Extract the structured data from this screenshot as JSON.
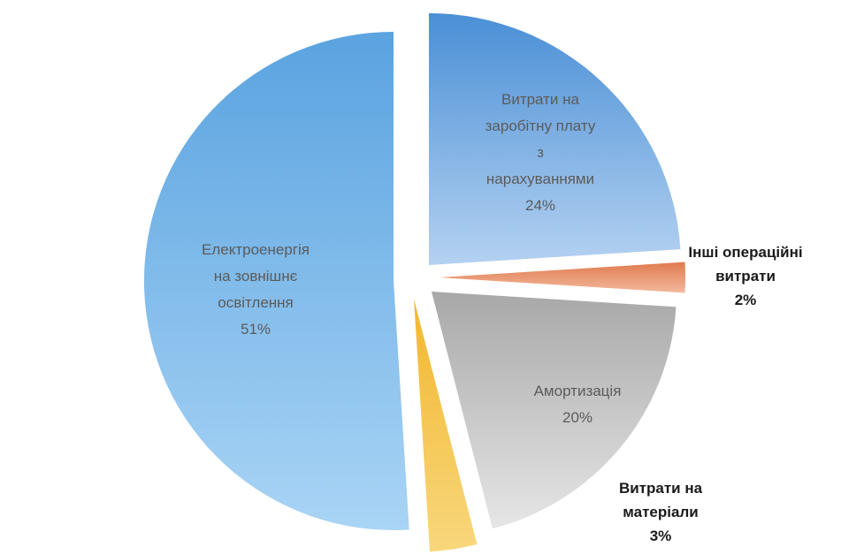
{
  "chart_data": {
    "type": "pie",
    "exploded": true,
    "slices": [
      {
        "label_lines": [
          "Витрати на",
          "заробітну плату",
          "з",
          "нарахуваннями"
        ],
        "value": 24,
        "value_text": "24%",
        "color": "#4a8fd6",
        "color_light": "#b4d1f1",
        "label_position": "inside"
      },
      {
        "label_lines": [
          "Інші операційні",
          "витрати"
        ],
        "value": 2,
        "value_text": "2%",
        "color": "#e07a4e",
        "color_light": "#f2b99d",
        "label_position": "outside"
      },
      {
        "label_lines": [
          "Амортизація"
        ],
        "value": 20,
        "value_text": "20%",
        "color": "#a8a8a8",
        "color_light": "#e6e6e6",
        "label_position": "inside"
      },
      {
        "label_lines": [
          "Витрати на",
          "матеріали"
        ],
        "value": 3,
        "value_text": "3%",
        "color": "#f2b72e",
        "color_light": "#f8d77c",
        "label_position": "outside"
      },
      {
        "label_lines": [
          "Електроенергія",
          "на зовнішнє",
          "освітлення"
        ],
        "value": 51,
        "value_text": "51%",
        "color": "#5aa3e0",
        "color_light": "#a9d4f5",
        "label_position": "inside"
      }
    ]
  }
}
